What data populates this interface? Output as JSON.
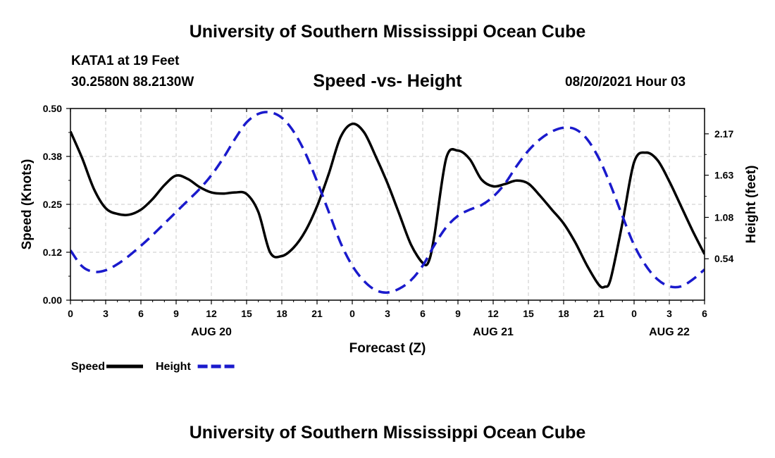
{
  "header": {
    "title": "University of Southern Mississippi Ocean Cube",
    "station": "KATA1 at 19 Feet",
    "coords": "30.2580N  88.2130W",
    "chart_title": "Speed -vs- Height",
    "datetime": "08/20/2021 Hour 03"
  },
  "footer": {
    "title": "University of Southern Mississippi Ocean Cube"
  },
  "chart_data": {
    "type": "line",
    "title": "Speed -vs- Height",
    "xlabel": "Forecast (Z)",
    "ylabel_left": "Speed (Knots)",
    "ylabel_right": "Height (feet)",
    "x_unit": "hours from 00Z AUG 20",
    "xlim": [
      0,
      54
    ],
    "ylim_left": [
      0,
      0.5
    ],
    "ylim_right": [
      0,
      2.5
    ],
    "grid": true,
    "x_ticks": [
      0,
      3,
      6,
      9,
      12,
      15,
      18,
      21,
      24,
      27,
      30,
      33,
      36,
      39,
      42,
      45,
      48,
      51,
      54
    ],
    "x_tick_labels": [
      "0",
      "3",
      "6",
      "9",
      "12",
      "15",
      "18",
      "21",
      "0",
      "3",
      "6",
      "9",
      "12",
      "15",
      "18",
      "21",
      "0",
      "3",
      "6"
    ],
    "day_labels": [
      {
        "x": 12,
        "label": "AUG 20"
      },
      {
        "x": 36,
        "label": "AUG 21"
      },
      {
        "x": 51,
        "label": "AUG 22"
      }
    ],
    "y_left_ticks": [
      0,
      0.125,
      0.25,
      0.375,
      0.5
    ],
    "y_left_tick_labels": [
      "0.00",
      "0.12",
      "0.25",
      "0.38",
      "0.50"
    ],
    "y_right_ticks": [
      0.54,
      1.08,
      1.63,
      2.17
    ],
    "y_right_tick_labels": [
      "0.54",
      "1.08",
      "1.63",
      "2.17"
    ],
    "legend": [
      {
        "name": "Speed",
        "color": "#000000",
        "dash": "solid"
      },
      {
        "name": "Height",
        "color": "#1a1acc",
        "dash": "dashed"
      }
    ],
    "series": [
      {
        "name": "Speed",
        "axis": "left",
        "color": "#000000",
        "x": [
          0,
          1,
          2,
          3,
          4,
          5,
          6,
          7,
          8,
          9,
          10,
          11,
          12,
          13,
          14,
          15,
          16,
          17,
          18,
          19,
          20,
          21,
          22,
          23,
          24,
          25,
          26,
          27,
          28,
          29,
          30,
          30.5,
          31,
          32,
          33,
          34,
          35,
          36,
          37,
          38,
          39,
          40,
          41,
          42,
          43,
          44,
          45,
          45.5,
          46,
          47,
          48,
          49,
          50,
          51,
          52,
          53,
          54
        ],
        "values": [
          0.44,
          0.37,
          0.29,
          0.24,
          0.225,
          0.223,
          0.236,
          0.264,
          0.3,
          0.325,
          0.316,
          0.295,
          0.281,
          0.278,
          0.281,
          0.277,
          0.23,
          0.125,
          0.115,
          0.137,
          0.18,
          0.245,
          0.33,
          0.425,
          0.46,
          0.438,
          0.375,
          0.305,
          0.225,
          0.145,
          0.097,
          0.1,
          0.17,
          0.37,
          0.39,
          0.368,
          0.315,
          0.297,
          0.303,
          0.312,
          0.304,
          0.272,
          0.236,
          0.2,
          0.15,
          0.09,
          0.04,
          0.035,
          0.055,
          0.2,
          0.36,
          0.385,
          0.365,
          0.31,
          0.245,
          0.18,
          0.12
        ]
      },
      {
        "name": "Height",
        "axis": "right",
        "color": "#1a1acc",
        "x": [
          0,
          1,
          2,
          3,
          4,
          5,
          6,
          7,
          8,
          9,
          10,
          11,
          12,
          13,
          14,
          15,
          16,
          17,
          18,
          19,
          20,
          21,
          22,
          23,
          24,
          25,
          26,
          27,
          28,
          29,
          30,
          31,
          32,
          33,
          34,
          35,
          36,
          37,
          38,
          39,
          40,
          41,
          42,
          43,
          44,
          45,
          46,
          47,
          48,
          49,
          50,
          51,
          52,
          53,
          54
        ],
        "values": [
          0.65,
          0.44,
          0.37,
          0.39,
          0.47,
          0.58,
          0.71,
          0.85,
          1.0,
          1.15,
          1.3,
          1.45,
          1.63,
          1.85,
          2.1,
          2.32,
          2.43,
          2.45,
          2.38,
          2.2,
          1.92,
          1.55,
          1.15,
          0.75,
          0.45,
          0.25,
          0.13,
          0.1,
          0.15,
          0.26,
          0.45,
          0.72,
          0.95,
          1.1,
          1.18,
          1.24,
          1.35,
          1.52,
          1.75,
          1.95,
          2.1,
          2.2,
          2.25,
          2.23,
          2.1,
          1.85,
          1.5,
          1.1,
          0.72,
          0.45,
          0.27,
          0.18,
          0.18,
          0.27,
          0.4
        ]
      }
    ]
  }
}
